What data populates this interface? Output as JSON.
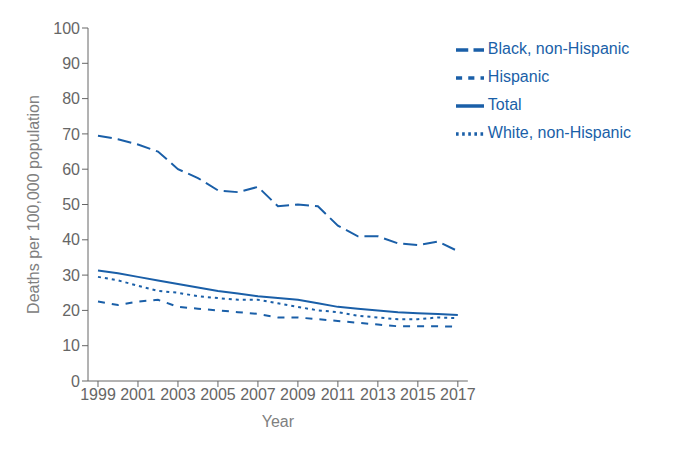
{
  "chart_data": {
    "type": "line",
    "x_label": "Year",
    "y_label": "Deaths per 100,000 population",
    "x": [
      1999,
      2000,
      2001,
      2002,
      2003,
      2004,
      2005,
      2006,
      2007,
      2008,
      2009,
      2010,
      2011,
      2012,
      2013,
      2014,
      2015,
      2016,
      2017
    ],
    "series": [
      {
        "name": "Total",
        "color": "#1a5fa8",
        "line_style": "solid",
        "values": [
          31.3,
          30.5,
          29.5,
          28.5,
          27.5,
          26.5,
          25.5,
          24.8,
          24.0,
          23.5,
          23.0,
          22.0,
          21.0,
          20.5,
          20.0,
          19.5,
          19.2,
          19.0,
          18.7
        ]
      },
      {
        "name": "Black, non-Hispanic",
        "color": "#1a5fa8",
        "line_style": "long-dash",
        "values": [
          69.5,
          68.5,
          67.0,
          65.0,
          60.0,
          57.5,
          54.0,
          53.5,
          55.0,
          49.5,
          50.0,
          49.5,
          44.0,
          41.0,
          41.0,
          39.0,
          38.5,
          39.5,
          36.8
        ]
      },
      {
        "name": "White, non-Hispanic",
        "color": "#1a5fa8",
        "line_style": "dotted",
        "values": [
          29.5,
          28.5,
          27.0,
          25.5,
          25.0,
          24.0,
          23.5,
          23.0,
          23.0,
          22.0,
          21.0,
          20.0,
          19.5,
          18.5,
          18.0,
          17.5,
          17.5,
          18.0,
          17.8
        ]
      },
      {
        "name": "Hispanic",
        "color": "#1a5fa8",
        "line_style": "dashed",
        "values": [
          22.5,
          21.5,
          22.5,
          23.0,
          21.0,
          20.5,
          20.0,
          19.5,
          19.0,
          18.0,
          18.0,
          17.5,
          17.0,
          16.5,
          16.0,
          15.5,
          15.5,
          15.5,
          15.4
        ]
      }
    ],
    "xlim": [
      1998.5,
      2017.5
    ],
    "xticks": [
      1999,
      2001,
      2003,
      2005,
      2007,
      2009,
      2011,
      2013,
      2015,
      2017
    ],
    "ylim": [
      0,
      100
    ],
    "yticks": [
      0,
      10,
      20,
      30,
      40,
      50,
      60,
      70,
      80,
      90,
      100
    ],
    "grid": false,
    "legend": "upper right"
  }
}
